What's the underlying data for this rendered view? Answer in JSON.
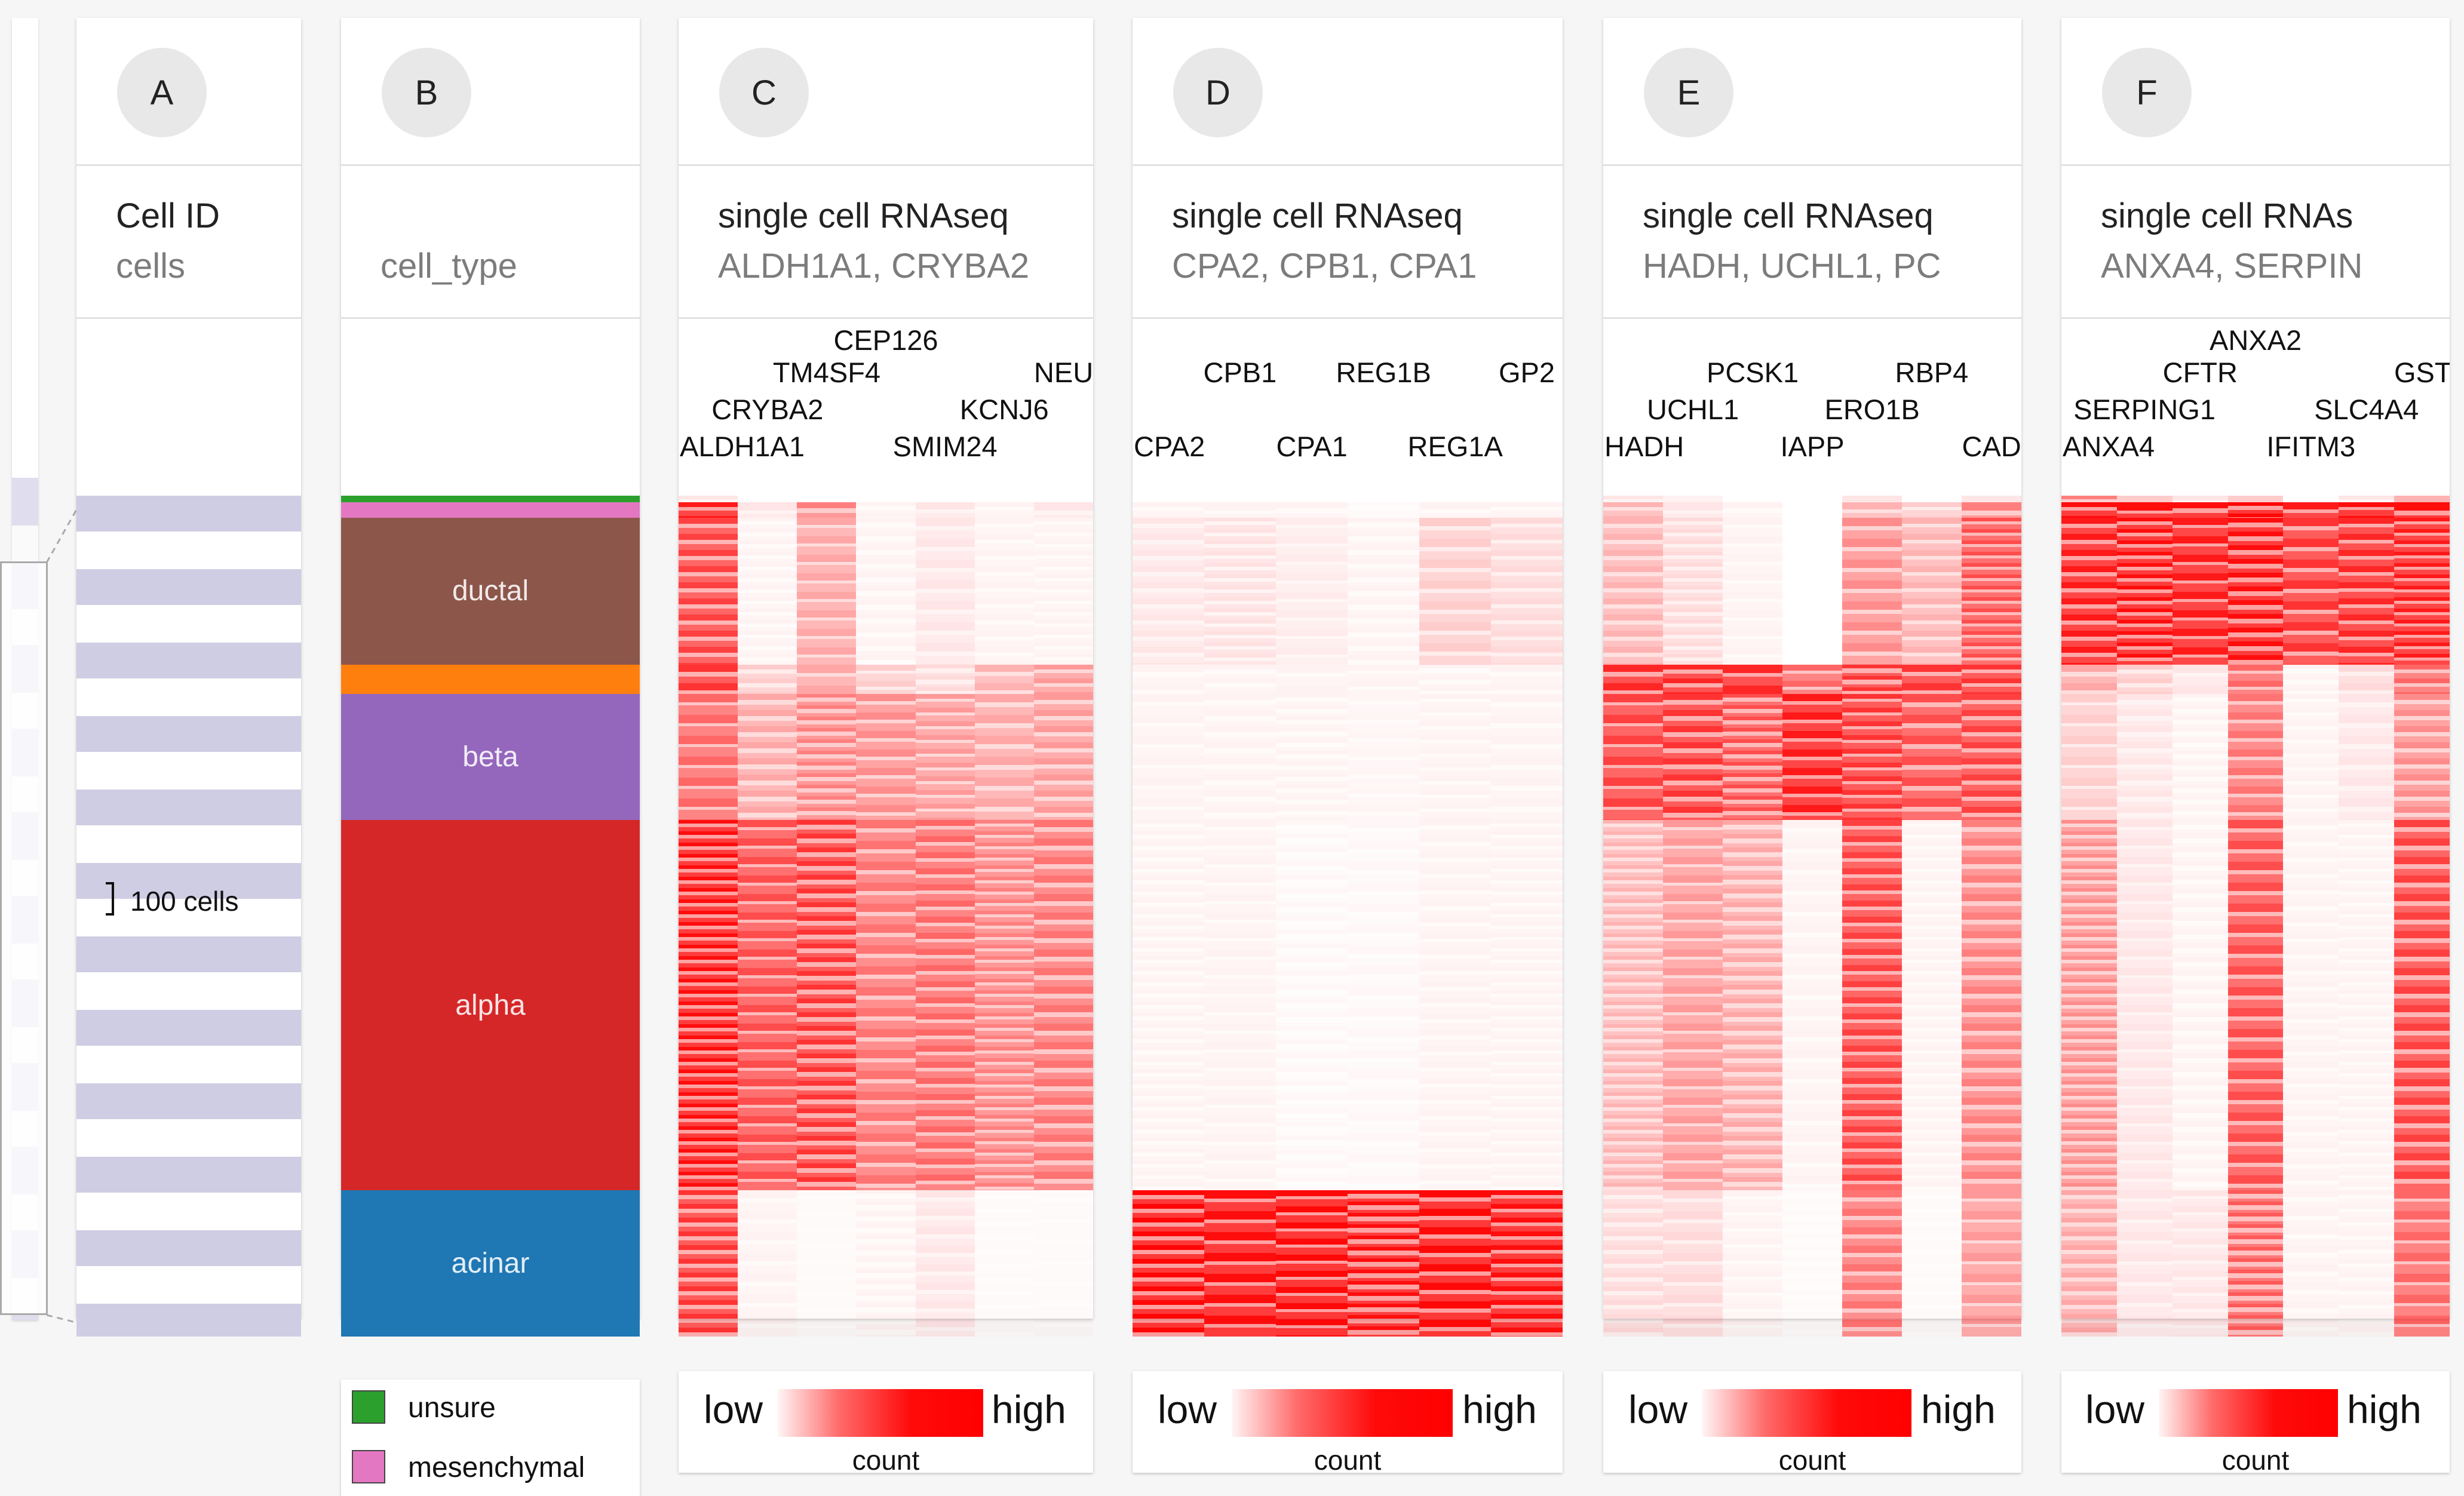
{
  "left_panel": {
    "scale_label": "100 cells"
  },
  "cell_id_track": {
    "letter": "A",
    "title": "Cell ID",
    "subtitle": "cells"
  },
  "cell_type_track": {
    "letter": "B",
    "title": "",
    "subtitle": "cell_type",
    "categories": [
      {
        "name": "unsure",
        "color": "#2ca02c",
        "proportion": 0.008
      },
      {
        "name": "mesenchymal",
        "color": "#e377c2",
        "proportion": 0.018
      },
      {
        "name": "ductal",
        "color": "#8c564b",
        "proportion": 0.175
      },
      {
        "name": "",
        "color": "#ff7f0e",
        "proportion": 0.035
      },
      {
        "name": "beta",
        "color": "#9467bd",
        "proportion": 0.15
      },
      {
        "name": "alpha",
        "color": "#d62728",
        "proportion": 0.44
      },
      {
        "name": "acinar",
        "color": "#1f77b4",
        "proportion": 0.174
      }
    ],
    "legend": [
      {
        "name": "unsure",
        "color": "#2ca02c"
      },
      {
        "name": "mesenchymal",
        "color": "#e377c2"
      }
    ]
  },
  "gene_tracks": [
    {
      "letter": "C",
      "title": "single cell RNAseq",
      "subtitle": "ALDH1A1, CRYBA2",
      "genes": [
        "ALDH1A1",
        "CRYBA2",
        "TM4SF4",
        "CEP126",
        "SMIM24",
        "KCNJ6",
        "NEU"
      ],
      "legend": {
        "low": "low",
        "high": "high",
        "caption": "count"
      }
    },
    {
      "letter": "D",
      "title": "single cell RNAseq",
      "subtitle": "CPA2, CPB1, CPA1",
      "genes": [
        "CPA2",
        "CPB1",
        "CPA1",
        "REG1B",
        "REG1A",
        "GP2"
      ],
      "legend": {
        "low": "low",
        "high": "high",
        "caption": "count"
      }
    },
    {
      "letter": "E",
      "title": "single cell RNAseq",
      "subtitle": "HADH, UCHL1, PC",
      "genes": [
        "HADH",
        "UCHL1",
        "PCSK1",
        "IAPP",
        "ERO1B",
        "RBP4",
        "CAD"
      ],
      "legend": {
        "low": "low",
        "high": "high",
        "caption": "count"
      }
    },
    {
      "letter": "F",
      "title": "single cell RNAs",
      "subtitle": "ANXA4, SERPIN",
      "genes": [
        "ANXA4",
        "SERPING1",
        "CFTR",
        "ANXA2",
        "IFITM3",
        "SLC4A4",
        "GST"
      ],
      "legend": {
        "low": "low",
        "high": "high",
        "caption": "count"
      }
    }
  ]
}
